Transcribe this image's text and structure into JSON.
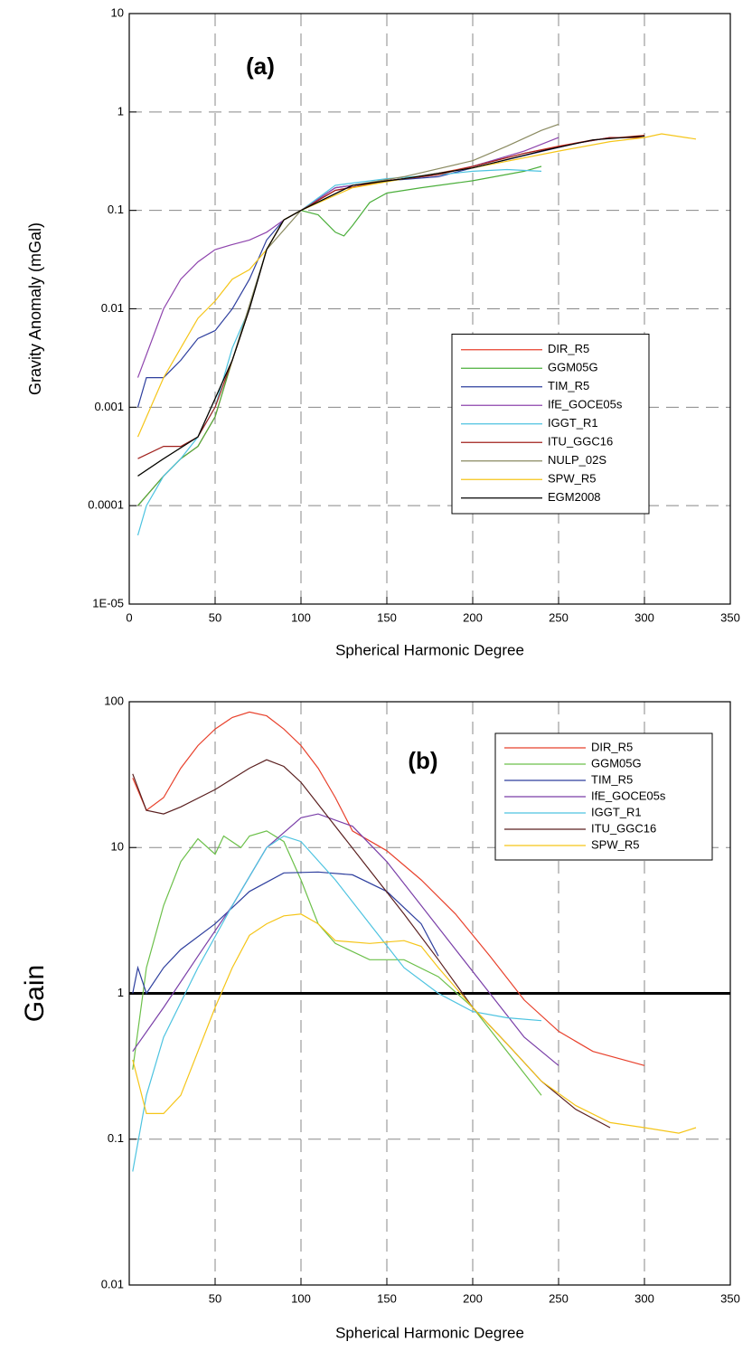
{
  "chart_data": [
    {
      "type": "line",
      "title": "(a)",
      "xlabel": "Spherical Harmonic Degree",
      "ylabel": "Gravity Anomaly (mGal)",
      "log_y": true,
      "grid": true,
      "legend": "lower right",
      "xlim": [
        0,
        350
      ],
      "xticks": [
        0,
        50,
        100,
        150,
        200,
        250,
        300,
        350
      ],
      "ylim": [
        1e-05,
        10
      ],
      "yticks": [
        {
          "value": 1e-05,
          "label": "1E-05"
        },
        0.0001,
        0.001,
        0.01,
        0.1,
        1,
        10
      ],
      "series": [
        {
          "name": "DIR_R5",
          "color": "#e8412c",
          "x": [
            5,
            20,
            30,
            40,
            50,
            60,
            70,
            80,
            90,
            100,
            120,
            150,
            170,
            200,
            230,
            250,
            270,
            300
          ],
          "values": [
            0.0001,
            0.0002,
            0.0003,
            0.0004,
            0.0008,
            0.003,
            0.01,
            0.04,
            0.08,
            0.1,
            0.16,
            0.2,
            0.22,
            0.28,
            0.38,
            0.45,
            0.52,
            0.58
          ]
        },
        {
          "name": "GGM05G",
          "color": "#4caf3c",
          "x": [
            5,
            20,
            30,
            40,
            50,
            60,
            70,
            80,
            90,
            100,
            110,
            120,
            125,
            130,
            140,
            150,
            170,
            200,
            230,
            240
          ],
          "values": [
            0.0001,
            0.0002,
            0.0003,
            0.0004,
            0.0008,
            0.003,
            0.01,
            0.04,
            0.08,
            0.1,
            0.09,
            0.06,
            0.055,
            0.07,
            0.12,
            0.15,
            0.17,
            0.2,
            0.25,
            0.28
          ]
        },
        {
          "name": "TIM_R5",
          "color": "#2e3f9e",
          "x": [
            5,
            10,
            20,
            30,
            40,
            50,
            60,
            70,
            80,
            90,
            100,
            120,
            150,
            180,
            200,
            230,
            260,
            280
          ],
          "values": [
            0.001,
            0.002,
            0.002,
            0.003,
            0.005,
            0.006,
            0.01,
            0.02,
            0.05,
            0.08,
            0.1,
            0.17,
            0.2,
            0.22,
            0.27,
            0.36,
            0.48,
            0.55
          ]
        },
        {
          "name": "IfE_GOCE05s",
          "color": "#8e44ad",
          "x": [
            5,
            20,
            30,
            40,
            50,
            60,
            70,
            80,
            90,
            100,
            120,
            150,
            180,
            200,
            230,
            250
          ],
          "values": [
            0.002,
            0.01,
            0.02,
            0.03,
            0.04,
            0.045,
            0.05,
            0.06,
            0.08,
            0.1,
            0.17,
            0.2,
            0.23,
            0.28,
            0.4,
            0.55
          ]
        },
        {
          "name": "IGGT_R1",
          "color": "#4dc3e0",
          "x": [
            5,
            10,
            20,
            30,
            40,
            50,
            60,
            70,
            80,
            90,
            100,
            120,
            150,
            180,
            200,
            220,
            240
          ],
          "values": [
            5e-05,
            0.0001,
            0.0002,
            0.0003,
            0.0005,
            0.001,
            0.004,
            0.01,
            0.04,
            0.08,
            0.1,
            0.18,
            0.21,
            0.23,
            0.25,
            0.26,
            0.25
          ]
        },
        {
          "name": "ITU_GGC16",
          "color": "#a0201c",
          "x": [
            5,
            20,
            30,
            40,
            50,
            60,
            70,
            80,
            90,
            100,
            120,
            150,
            180,
            200,
            230,
            260,
            280,
            300
          ],
          "values": [
            0.0003,
            0.0004,
            0.0004,
            0.0005,
            0.001,
            0.003,
            0.01,
            0.04,
            0.08,
            0.1,
            0.16,
            0.2,
            0.23,
            0.28,
            0.38,
            0.48,
            0.55,
            0.55
          ]
        },
        {
          "name": "NULP_02S",
          "color": "#8a8a60",
          "x": [
            5,
            20,
            40,
            60,
            80,
            100,
            130,
            160,
            200,
            220,
            240,
            250
          ],
          "values": [
            0.0002,
            0.0003,
            0.0005,
            0.003,
            0.04,
            0.1,
            0.18,
            0.22,
            0.32,
            0.45,
            0.65,
            0.75
          ]
        },
        {
          "name": "SPW_R5",
          "color": "#f5c518",
          "x": [
            5,
            20,
            30,
            40,
            50,
            60,
            70,
            80,
            90,
            100,
            130,
            160,
            200,
            250,
            280,
            300,
            310,
            330
          ],
          "values": [
            0.0005,
            0.002,
            0.004,
            0.008,
            0.012,
            0.02,
            0.025,
            0.04,
            0.08,
            0.1,
            0.17,
            0.21,
            0.27,
            0.4,
            0.5,
            0.55,
            0.6,
            0.53
          ]
        },
        {
          "name": "EGM2008",
          "color": "#000000",
          "x": [
            5,
            20,
            40,
            60,
            70,
            80,
            90,
            100,
            130,
            160,
            200,
            240,
            270,
            300
          ],
          "values": [
            0.0002,
            0.0003,
            0.0005,
            0.003,
            0.01,
            0.04,
            0.08,
            0.1,
            0.18,
            0.21,
            0.27,
            0.4,
            0.52,
            0.57
          ]
        }
      ]
    },
    {
      "type": "line",
      "title": "(b)",
      "xlabel": "Spherical Harmonic Degree",
      "ylabel": "Gain",
      "log_y": true,
      "grid": true,
      "legend": "upper right",
      "hline": 1,
      "xlim": [
        0,
        350
      ],
      "xticks": [
        50,
        100,
        150,
        200,
        250,
        300,
        350
      ],
      "ylim": [
        0.01,
        100
      ],
      "yticks": [
        0.01,
        0.1,
        1,
        10,
        100
      ],
      "series": [
        {
          "name": "DIR_R5",
          "color": "#e8412c",
          "x": [
            2,
            10,
            20,
            30,
            40,
            50,
            60,
            70,
            80,
            90,
            100,
            110,
            120,
            130,
            150,
            170,
            190,
            210,
            230,
            250,
            270,
            300
          ],
          "values": [
            30,
            18,
            22,
            35,
            50,
            65,
            78,
            85,
            80,
            65,
            50,
            35,
            22,
            13,
            9.5,
            6,
            3.5,
            1.8,
            0.9,
            0.55,
            0.4,
            0.32
          ]
        },
        {
          "name": "GGM05G",
          "color": "#6cc04a",
          "x": [
            2,
            10,
            20,
            30,
            40,
            50,
            55,
            65,
            70,
            80,
            90,
            100,
            110,
            120,
            140,
            160,
            180,
            200,
            220,
            240
          ],
          "values": [
            0.3,
            1.5,
            4,
            8,
            11.5,
            9,
            12,
            10,
            12,
            13,
            11,
            6,
            3,
            2.2,
            1.7,
            1.7,
            1.3,
            0.8,
            0.4,
            0.2
          ]
        },
        {
          "name": "TIM_R5",
          "color": "#2e3f9e",
          "x": [
            2,
            5,
            10,
            20,
            30,
            50,
            70,
            90,
            110,
            130,
            150,
            170,
            180
          ],
          "values": [
            1,
            1.5,
            1,
            1.5,
            2,
            3,
            5,
            6.7,
            6.8,
            6.5,
            5,
            3,
            1.8
          ]
        },
        {
          "name": "IfE_GOCE05s",
          "color": "#7a3fa8",
          "x": [
            2,
            20,
            40,
            60,
            80,
            100,
            110,
            130,
            150,
            170,
            190,
            210,
            230,
            250
          ],
          "values": [
            0.4,
            0.8,
            1.8,
            4,
            10,
            16,
            17,
            14,
            8,
            4,
            2,
            1,
            0.5,
            0.32
          ]
        },
        {
          "name": "IGGT_R1",
          "color": "#4dc3e0",
          "x": [
            2,
            10,
            20,
            40,
            60,
            80,
            90,
            100,
            120,
            140,
            160,
            180,
            200,
            220,
            240
          ],
          "values": [
            0.06,
            0.2,
            0.5,
            1.5,
            4,
            10,
            12,
            11,
            6,
            3,
            1.5,
            1,
            0.75,
            0.68,
            0.65
          ]
        },
        {
          "name": "ITU_GGC16",
          "color": "#5a1f1f",
          "x": [
            2,
            10,
            20,
            30,
            50,
            70,
            80,
            90,
            100,
            120,
            140,
            160,
            180,
            200,
            220,
            240,
            260,
            280
          ],
          "values": [
            32,
            18,
            17,
            19,
            25,
            35,
            40,
            36,
            28,
            14,
            7,
            3.5,
            1.7,
            0.8,
            0.45,
            0.25,
            0.16,
            0.12
          ]
        },
        {
          "name": "SPW_R5",
          "color": "#f5c518",
          "x": [
            2,
            10,
            20,
            30,
            40,
            50,
            60,
            70,
            80,
            90,
            100,
            110,
            120,
            140,
            160,
            170,
            180,
            200,
            220,
            240,
            260,
            280,
            300,
            320,
            330
          ],
          "values": [
            0.35,
            0.15,
            0.15,
            0.2,
            0.4,
            0.8,
            1.5,
            2.5,
            3,
            3.4,
            3.5,
            3,
            2.3,
            2.2,
            2.3,
            2.1,
            1.5,
            0.8,
            0.45,
            0.25,
            0.17,
            0.13,
            0.12,
            0.11,
            0.12
          ]
        }
      ]
    }
  ]
}
